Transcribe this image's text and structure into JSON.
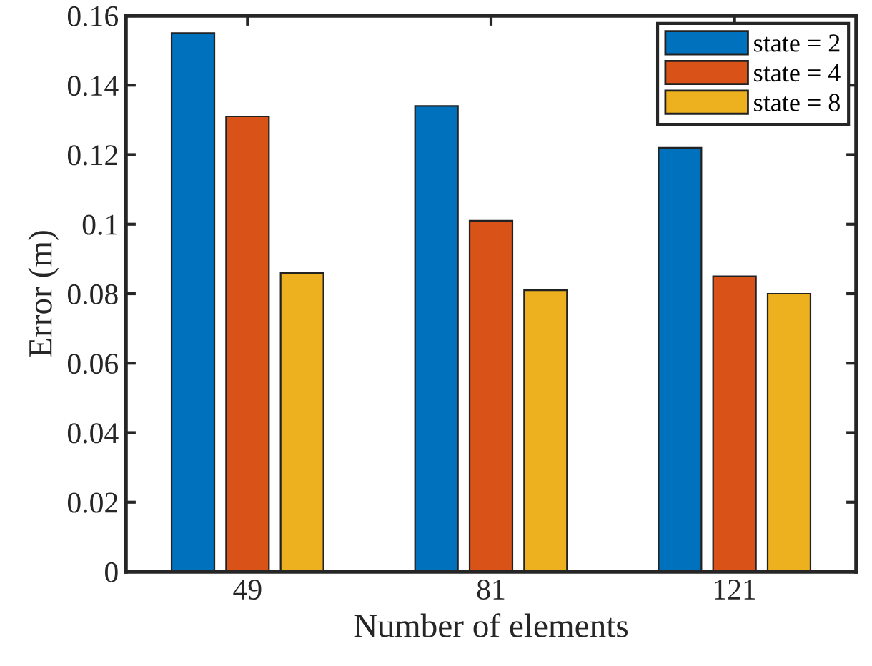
{
  "chart_data": {
    "type": "bar",
    "xlabel": "Number of elements",
    "ylabel": "Error (m)",
    "categories": [
      "49",
      "81",
      "121"
    ],
    "series": [
      {
        "name": "state = 2",
        "color": "#0072bd",
        "values": [
          0.155,
          0.134,
          0.122
        ]
      },
      {
        "name": "state = 4",
        "color": "#d95319",
        "values": [
          0.131,
          0.101,
          0.085
        ]
      },
      {
        "name": "state = 8",
        "color": "#edb120",
        "values": [
          0.086,
          0.081,
          0.08
        ]
      }
    ],
    "ylim": [
      0,
      0.16
    ],
    "yticks": [
      0,
      0.02,
      0.04,
      0.06,
      0.08,
      0.1,
      0.12,
      0.14,
      0.16
    ],
    "grid": false,
    "legend": "top right"
  }
}
